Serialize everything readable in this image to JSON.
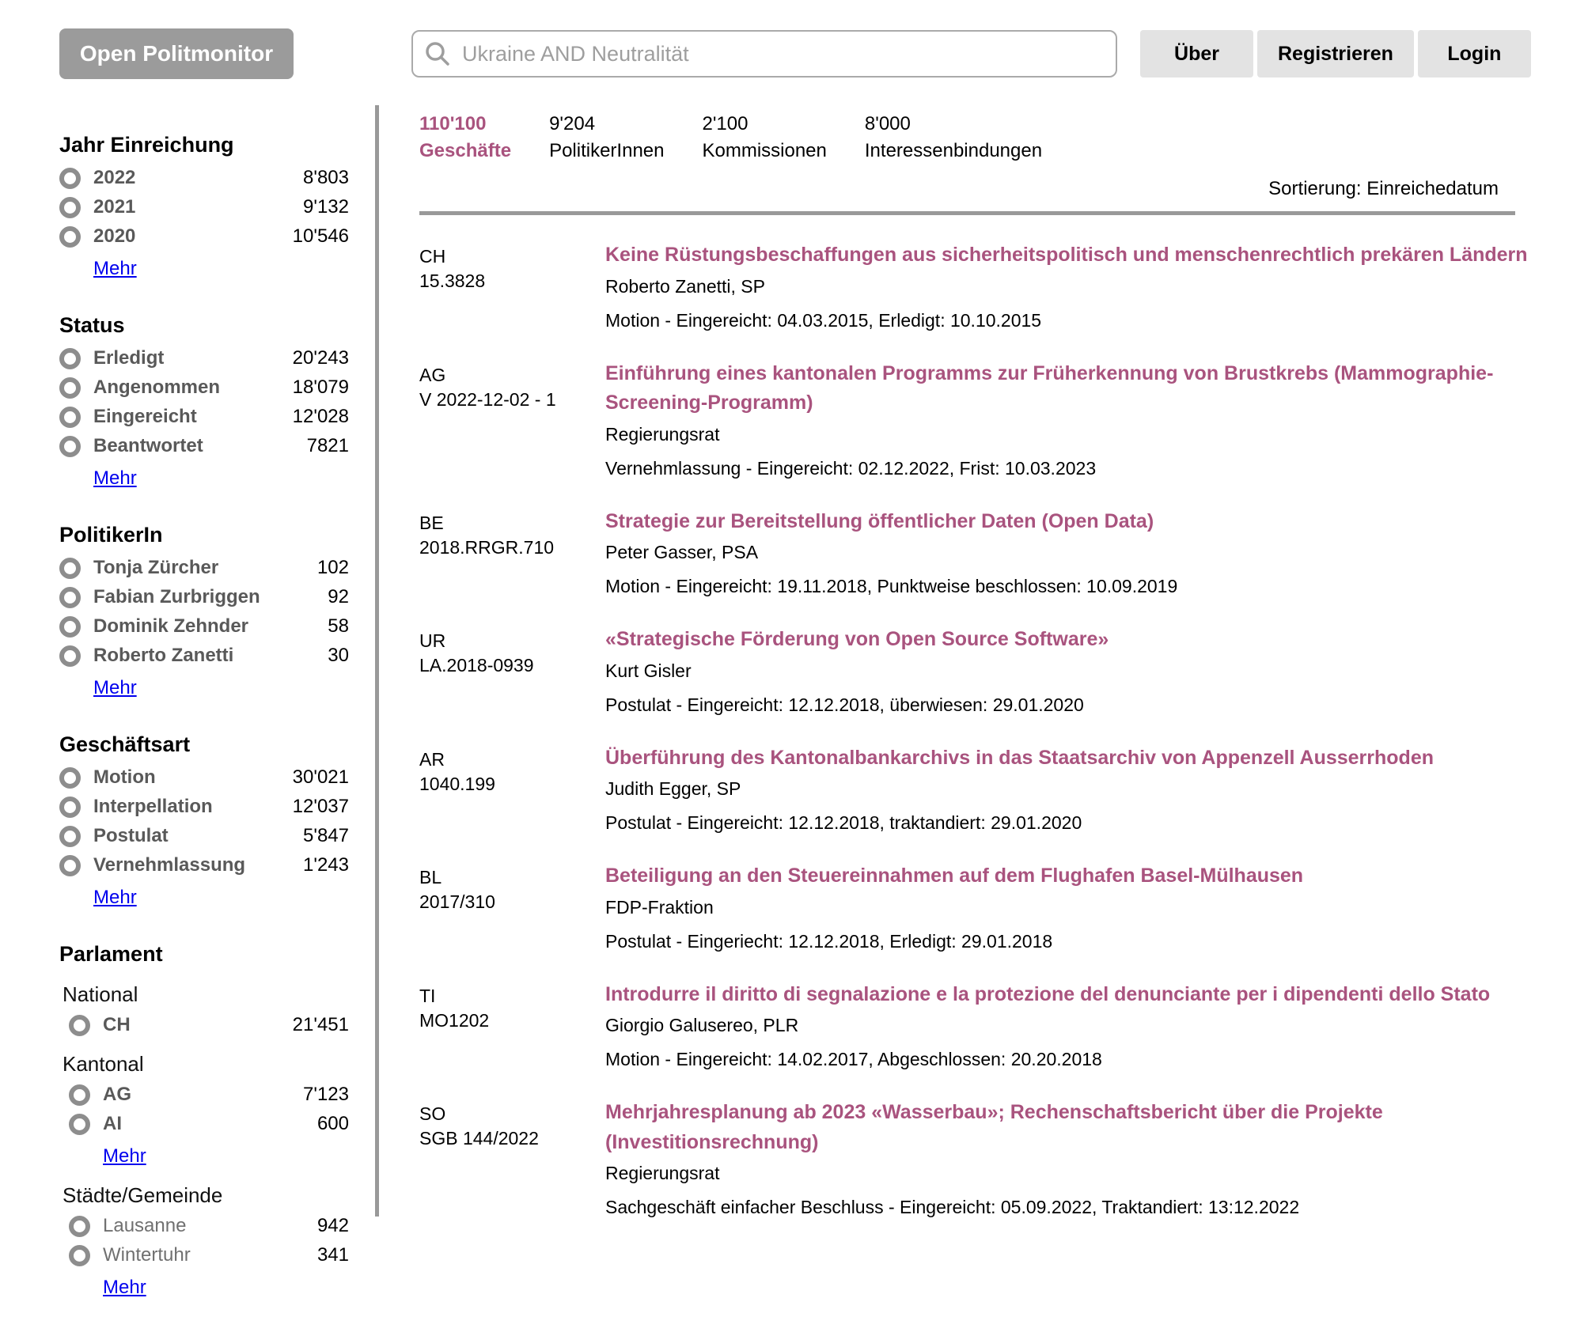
{
  "colors": {
    "accent": "#a9537e",
    "divider": "#999999",
    "logo_bg": "#9b9b9b",
    "nav_btn_bg": "#e3e3e3",
    "link_blue": "#0000ee"
  },
  "header": {
    "logo": "Open Politmonitor",
    "search": {
      "placeholder": "Ukraine AND Neutralität",
      "icon": "search-icon"
    },
    "nav": [
      {
        "label": "Über"
      },
      {
        "label": "Registrieren"
      },
      {
        "label": "Login"
      }
    ]
  },
  "sidebar": {
    "more_label": "Mehr",
    "sections": [
      {
        "title": "Jahr Einreichung",
        "items": [
          {
            "label": "2022",
            "count": "8'803"
          },
          {
            "label": "2021",
            "count": "9'132"
          },
          {
            "label": "2020",
            "count": "10'546"
          }
        ],
        "more": true
      },
      {
        "title": "Status",
        "items": [
          {
            "label": "Erledigt",
            "count": "20'243"
          },
          {
            "label": "Angenommen",
            "count": "18'079"
          },
          {
            "label": "Eingereicht",
            "count": "12'028"
          },
          {
            "label": "Beantwortet",
            "count": "7821"
          }
        ],
        "more": true
      },
      {
        "title": "PolitikerIn",
        "items": [
          {
            "label": "Tonja Zürcher",
            "count": "102"
          },
          {
            "label": "Fabian Zurbriggen",
            "count": "92"
          },
          {
            "label": "Dominik Zehnder",
            "count": "58"
          },
          {
            "label": "Roberto Zanetti",
            "count": "30"
          }
        ],
        "more": true
      },
      {
        "title": "Geschäftsart",
        "items": [
          {
            "label": "Motion",
            "count": "30'021"
          },
          {
            "label": "Interpellation",
            "count": "12'037"
          },
          {
            "label": "Postulat",
            "count": "5'847"
          },
          {
            "label": "Vernehmlassung",
            "count": "1'243"
          }
        ],
        "more": true
      },
      {
        "title": "Parlament",
        "groups": [
          {
            "title": "National",
            "items": [
              {
                "label": "CH",
                "count": "21'451"
              }
            ],
            "more": false,
            "muted": false
          },
          {
            "title": "Kantonal",
            "items": [
              {
                "label": "AG",
                "count": "7'123"
              },
              {
                "label": "AI",
                "count": "600"
              }
            ],
            "more": true,
            "muted": false
          },
          {
            "title": "Städte/Gemeinde",
            "items": [
              {
                "label": "Lausanne",
                "count": "942"
              },
              {
                "label": "Wintertuhr",
                "count": "341"
              }
            ],
            "more": true,
            "muted": true
          }
        ]
      }
    ]
  },
  "stats": [
    {
      "value": "110'100",
      "label": "Geschäfte",
      "active": true
    },
    {
      "value": "9'204",
      "label": "PolitikerInnen",
      "active": false
    },
    {
      "value": "2'100",
      "label": "Kommissionen",
      "active": false
    },
    {
      "value": "8'000",
      "label": "Interessenbindungen",
      "active": false
    }
  ],
  "sorting_label": "Sortierung: Einreichedatum",
  "results": [
    {
      "canton": "CH",
      "ref": "15.3828",
      "title": "Keine Rüstungsbeschaffungen aus sicherheitspolitisch und menschenrechtlich prekären Ländern",
      "author": "Roberto Zanetti, SP",
      "meta": "Motion - Eingereicht: 04.03.2015, Erledigt: 10.10.2015"
    },
    {
      "canton": "AG",
      "ref": "V 2022-12-02 - 1",
      "title": "Einführung eines kantonalen Programms zur Früherkennung von Brustkrebs (Mammographie-Screening-Programm)",
      "author": "Regierungsrat",
      "meta": "Vernehmlassung - Eingereicht: 02.12.2022, Frist: 10.03.2023"
    },
    {
      "canton": "BE",
      "ref": "2018.RRGR.710",
      "title": "Strategie zur Bereitstellung öffentlicher Daten (Open Data)",
      "author": "Peter Gasser, PSA",
      "meta": "Motion - Eingereicht: 19.11.2018, Punktweise beschlossen: 10.09.2019"
    },
    {
      "canton": "UR",
      "ref": "LA.2018-0939",
      "title": "«Strategische Förderung von Open Source Software»",
      "author": "Kurt Gisler",
      "meta": "Postulat - Eingereicht: 12.12.2018, überwiesen: 29.01.2020"
    },
    {
      "canton": "AR",
      "ref": "1040.199",
      "title": "Überführung des Kantonalbankarchivs in das Staatsarchiv von Appenzell Ausserrhoden",
      "author": "Judith Egger, SP",
      "meta": "Postulat - Eingereicht: 12.12.2018, traktandiert: 29.01.2020"
    },
    {
      "canton": "BL",
      "ref": "2017/310",
      "title": "Beteiligung an den Steuereinnahmen auf dem Flughafen Basel-Mülhausen",
      "author": "FDP-Fraktion",
      "meta": "Postulat - Eingeriecht: 12.12.2018, Erledigt: 29.01.2018"
    },
    {
      "canton": "TI",
      "ref": "MO1202",
      "title": "Introdurre il diritto di segnalazione e la protezione del denunciante per i dipendenti dello Stato",
      "author": "Giorgio Galusereo, PLR",
      "meta": "Motion - Eingereicht: 14.02.2017, Abgeschlossen: 20.20.2018"
    },
    {
      "canton": "SO",
      "ref": "SGB 144/2022",
      "title": "Mehrjahresplanung ab 2023 «Wasserbau»; Rechenschaftsbericht über die Projekte (Investitionsrechnung)",
      "author": "Regierungsrat",
      "meta": "Sachgeschäft einfacher Beschluss - Eingereicht: 05.09.2022, Traktandiert: 13:12.2022"
    }
  ]
}
